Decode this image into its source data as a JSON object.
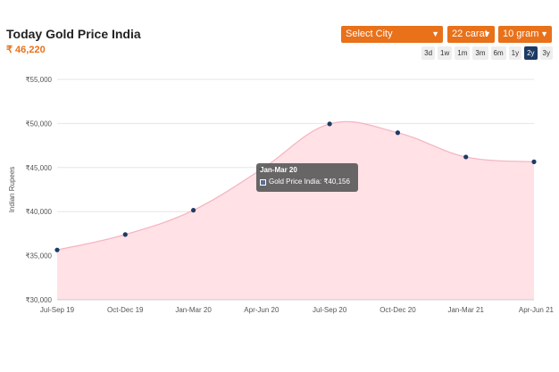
{
  "header": {
    "title": "Today Gold Price India",
    "price": "₹ 46,220"
  },
  "controls": {
    "city_select": "Select City",
    "carat_select": "22 carat",
    "weight_select": "10 gram",
    "ranges": [
      "3d",
      "1w",
      "1m",
      "3m",
      "6m",
      "1y",
      "2y",
      "3y"
    ],
    "active_range": "2y"
  },
  "colors": {
    "accent": "#e8711a",
    "active_range": "#1f3b63",
    "area_fill": "#ffe1e6",
    "area_line": "#f4b3c0",
    "point": "#1f3b63"
  },
  "tooltip": {
    "title": "Jan-Mar 20",
    "label": "Gold Price India: ₹40,156"
  },
  "chart_data": {
    "type": "area",
    "x": [
      "Jul-Sep 19",
      "Oct-Dec 19",
      "Jan-Mar 20",
      "Apr-Jun 20",
      "Jul-Sep 20",
      "Oct-Dec 20",
      "Jan-Mar 21",
      "Apr-Jun 21"
    ],
    "series": [
      {
        "name": "Gold Price India",
        "values": [
          35650,
          37400,
          40156,
          44800,
          49950,
          48950,
          46200,
          45650
        ]
      }
    ],
    "ylabel": "Indian Rupees",
    "ylim": [
      30000,
      55000
    ],
    "yticks": [
      "₹30,000",
      "₹35,000",
      "₹40,000",
      "₹45,000",
      "₹50,000",
      "₹55,000"
    ],
    "grid": true,
    "legend": "none"
  }
}
